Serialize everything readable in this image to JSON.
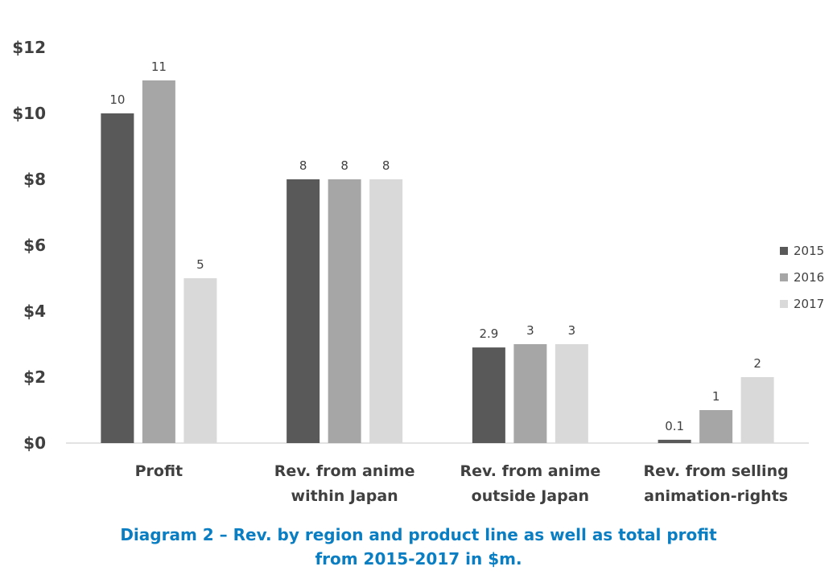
{
  "chart_data": {
    "type": "bar",
    "categories": [
      [
        "Profit"
      ],
      [
        "Rev. from anime",
        "within Japan"
      ],
      [
        "Rev. from anime",
        "outside Japan"
      ],
      [
        "Rev. from selling",
        "animation-rights"
      ]
    ],
    "series": [
      {
        "name": "2015",
        "color": "#595959",
        "values": [
          10,
          8,
          2.9,
          0.1
        ],
        "labels": [
          "10",
          "8",
          "2.9",
          "0.1"
        ]
      },
      {
        "name": "2016",
        "color": "#a6a6a6",
        "values": [
          11,
          8,
          3,
          1
        ],
        "labels": [
          "11",
          "8",
          "3",
          "1"
        ]
      },
      {
        "name": "2017",
        "color": "#d9d9d9",
        "values": [
          5,
          8,
          3,
          2
        ],
        "labels": [
          "5",
          "8",
          "3",
          "2"
        ]
      }
    ],
    "y_ticks": [
      "$0",
      "$2",
      "$4",
      "$6",
      "$8",
      "$10",
      "$12"
    ],
    "ylim": [
      0,
      12
    ],
    "legend_position": "right",
    "grid": false
  },
  "caption": {
    "line1": "Diagram 2 – Rev. by region and product line as well as total profit",
    "line2": "from 2015-2017 in $m."
  }
}
